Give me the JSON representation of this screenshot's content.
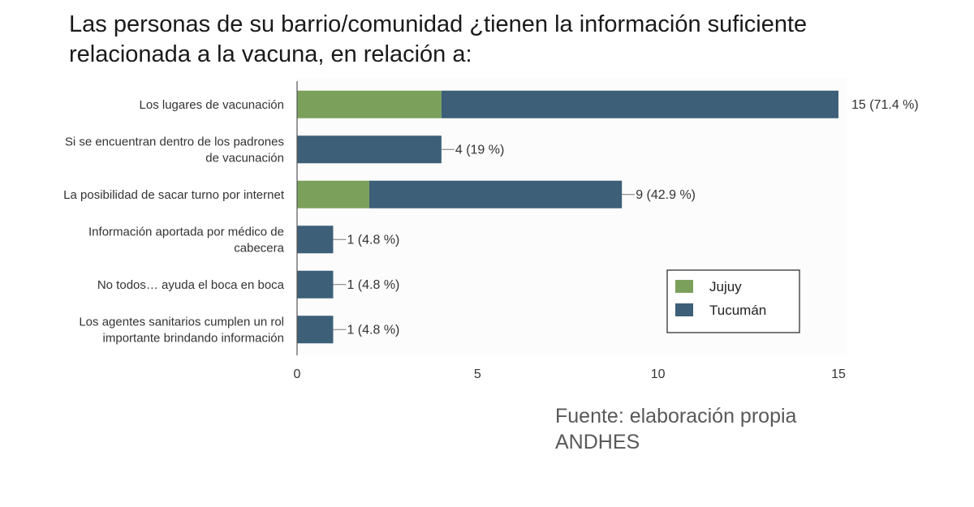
{
  "title": {
    "line1": "Las personas de su barrio/comunidad ¿tienen la información suficiente",
    "line2": "relacionada  a la vacuna, en relación a:"
  },
  "source": {
    "line1": "Fuente: elaboración propia",
    "line2": "ANDHES"
  },
  "colors": {
    "jujuy": "#7ba05b",
    "tucuman": "#3d5f78",
    "axis": "#555555",
    "label": "#333333",
    "grid": "#f2f2f2"
  },
  "chart_data": {
    "type": "bar",
    "orientation": "horizontal",
    "stacked": true,
    "categories": [
      [
        "Los lugares de vacunación"
      ],
      [
        "Si se encuentran dentro de los padrones",
        "de vacunación"
      ],
      [
        "La posibilidad de sacar turno por internet"
      ],
      [
        "Información aportada por médico de",
        "cabecera"
      ],
      [
        "No todos… ayuda el boca en boca"
      ],
      [
        "Los agentes sanitarios cumplen un rol",
        "importante brindando información"
      ]
    ],
    "series": [
      {
        "name": "Jujuy",
        "values": [
          4,
          0,
          2,
          0,
          0,
          0
        ]
      },
      {
        "name": "Tucumán",
        "values": [
          11,
          4,
          7,
          1,
          1,
          1
        ]
      }
    ],
    "data_labels": [
      "15 (71.4 %)",
      "4 (19 %)",
      "9 (42.9 %)",
      "1 (4.8 %)",
      "1 (4.8 %)",
      "1 (4.8 %)"
    ],
    "xlim": [
      0,
      15
    ],
    "xticks": [
      0,
      5,
      10,
      15
    ],
    "legend_position": "lower-right"
  }
}
